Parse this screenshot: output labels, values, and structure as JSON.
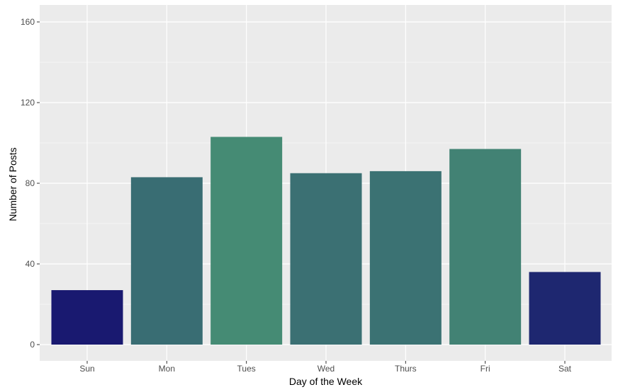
{
  "chart_data": {
    "type": "bar",
    "title": "",
    "xlabel": "Day of the Week",
    "ylabel": "Number of Posts",
    "categories": [
      "Sun",
      "Mon",
      "Tues",
      "Wed",
      "Thurs",
      "Fri",
      "Sat"
    ],
    "values": [
      27,
      83,
      103,
      85,
      86,
      97,
      36
    ],
    "ylim": [
      0,
      166
    ],
    "yticks": [
      0,
      40,
      80,
      120,
      160
    ],
    "ytick_labels": [
      "0",
      "40",
      "80",
      "120",
      "160"
    ],
    "grid": true,
    "legend": "none",
    "colors": {
      "panel_background": "#ebebeb",
      "grid": "#ffffff",
      "bar_low": "#191970",
      "bar_high": "#458b74"
    }
  }
}
